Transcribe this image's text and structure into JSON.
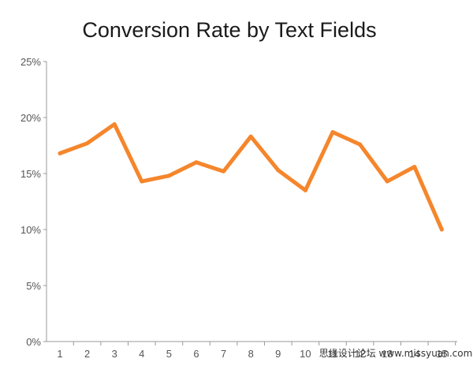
{
  "chart_data": {
    "type": "line",
    "title": "Conversion Rate by Text Fields",
    "xlabel": "",
    "ylabel": "",
    "categories": [
      "1",
      "2",
      "3",
      "4",
      "5",
      "6",
      "7",
      "8",
      "9",
      "10",
      "11",
      "12",
      "13",
      "14",
      "15"
    ],
    "series": [
      {
        "values": [
          16.8,
          17.7,
          19.4,
          14.3,
          14.8,
          16.0,
          15.2,
          18.3,
          15.3,
          13.5,
          18.7,
          17.6,
          14.3,
          15.6,
          10.0
        ]
      }
    ],
    "y_ticks": [
      "0%",
      "5%",
      "10%",
      "15%",
      "20%",
      "25%"
    ],
    "ylim": [
      0,
      25
    ],
    "grid": false,
    "legend": "none",
    "line_color": "#F5862C"
  },
  "watermark": "思缘设计论坛 www.missyuan.com"
}
